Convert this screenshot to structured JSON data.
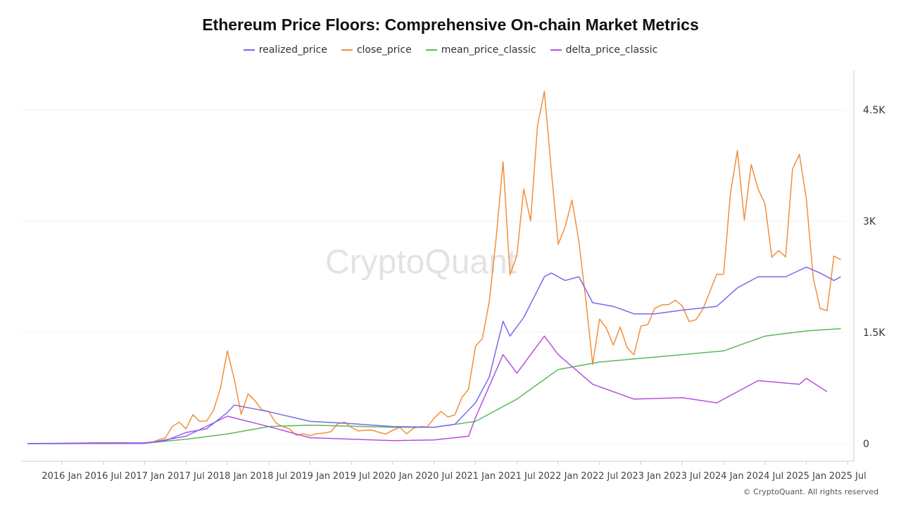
{
  "title": "Ethereum Price Floors: Comprehensive On-chain Market Metrics",
  "watermark": "CryptoQuant",
  "copyright": "© CryptoQuant. All rights reserved",
  "chart_data": {
    "type": "line",
    "title": "Ethereum Price Floors: Comprehensive On-chain Market Metrics",
    "xlabel": "",
    "ylabel": "",
    "legend_position": "top",
    "grid": "horizontal",
    "ylim": [
      -250,
      5050
    ],
    "y_ticks": [
      {
        "value": 0,
        "label": "0"
      },
      {
        "value": 1500,
        "label": "1.5K"
      },
      {
        "value": 3000,
        "label": "3K"
      },
      {
        "value": 4500,
        "label": "4.5K"
      }
    ],
    "x_ticks": [
      "2016 Jan",
      "2016 Jul",
      "2017 Jan",
      "2017 Jul",
      "2018 Jan",
      "2018 Jul",
      "2019 Jan",
      "2019 Jul",
      "2020 Jan",
      "2020 Jul",
      "2021 Jan",
      "2021 Jul",
      "2022 Jan",
      "2022 Jul",
      "2023 Jan",
      "2023 Jul",
      "2024 Jan",
      "2024 Jul",
      "2025 Jan",
      "2025 Jul"
    ],
    "series": [
      {
        "name": "realized_price",
        "color": "#7b68ee",
        "x": [
          "2015-08",
          "2016-01",
          "2016-07",
          "2017-01",
          "2017-04",
          "2017-07",
          "2017-10",
          "2018-01",
          "2018-02",
          "2018-07",
          "2019-01",
          "2019-07",
          "2020-01",
          "2020-07",
          "2020-10",
          "2021-01",
          "2021-03",
          "2021-05",
          "2021-06",
          "2021-08",
          "2021-11",
          "2021-12",
          "2022-02",
          "2022-04",
          "2022-06",
          "2022-09",
          "2022-12",
          "2023-03",
          "2023-07",
          "2023-12",
          "2024-03",
          "2024-06",
          "2024-10",
          "2025-01",
          "2025-03",
          "2025-05",
          "2025-06"
        ],
        "values": [
          1,
          5,
          8,
          10,
          40,
          150,
          200,
          420,
          520,
          430,
          300,
          270,
          230,
          220,
          260,
          550,
          900,
          1650,
          1450,
          1700,
          2250,
          2300,
          2200,
          2250,
          1900,
          1850,
          1750,
          1750,
          1800,
          1850,
          2100,
          2250,
          2250,
          2380,
          2300,
          2200,
          2250
        ]
      },
      {
        "name": "close_price",
        "color": "#f28e3c",
        "x": [
          "2015-08",
          "2015-10",
          "2015-12",
          "2016-02",
          "2016-04",
          "2016-06",
          "2016-08",
          "2016-10",
          "2016-12",
          "2017-01",
          "2017-02",
          "2017-03",
          "2017-04",
          "2017-05",
          "2017-06",
          "2017-07",
          "2017-08",
          "2017-09",
          "2017-10",
          "2017-11",
          "2017-12",
          "2018-01",
          "2018-02",
          "2018-03",
          "2018-04",
          "2018-05",
          "2018-06",
          "2018-07",
          "2018-08",
          "2018-09",
          "2018-10",
          "2018-11",
          "2018-12",
          "2019-01",
          "2019-02",
          "2019-03",
          "2019-04",
          "2019-05",
          "2019-06",
          "2019-07",
          "2019-08",
          "2019-09",
          "2019-10",
          "2019-11",
          "2019-12",
          "2020-01",
          "2020-02",
          "2020-03",
          "2020-04",
          "2020-05",
          "2020-06",
          "2020-07",
          "2020-08",
          "2020-09",
          "2020-10",
          "2020-11",
          "2020-12",
          "2021-01",
          "2021-02",
          "2021-03",
          "2021-04",
          "2021-05",
          "2021-06",
          "2021-07",
          "2021-08",
          "2021-09",
          "2021-10",
          "2021-11",
          "2021-12",
          "2022-01",
          "2022-02",
          "2022-03",
          "2022-04",
          "2022-05",
          "2022-06",
          "2022-07",
          "2022-08",
          "2022-09",
          "2022-10",
          "2022-11",
          "2022-12",
          "2023-01",
          "2023-02",
          "2023-03",
          "2023-04",
          "2023-05",
          "2023-06",
          "2023-07",
          "2023-08",
          "2023-09",
          "2023-10",
          "2023-11",
          "2023-12",
          "2024-01",
          "2024-02",
          "2024-03",
          "2024-04",
          "2024-05",
          "2024-06",
          "2024-07",
          "2024-08",
          "2024-09",
          "2024-10",
          "2024-11",
          "2024-12",
          "2025-01",
          "2025-02",
          "2025-03",
          "2025-04",
          "2025-05",
          "2025-06"
        ],
        "values": [
          1,
          0.9,
          0.9,
          6,
          9,
          12,
          11,
          11,
          8,
          10,
          16,
          50,
          80,
          230,
          290,
          200,
          390,
          300,
          305,
          450,
          750,
          1250,
          870,
          395,
          670,
          580,
          455,
          435,
          282,
          232,
          198,
          113,
          133,
          107,
          136,
          141,
          160,
          268,
          290,
          218,
          172,
          180,
          182,
          152,
          130,
          180,
          218,
          133,
          206,
          231,
          226,
          345,
          434,
          360,
          386,
          616,
          737,
          1314,
          1417,
          1918,
          2773,
          3800,
          2275,
          2536,
          3433,
          3001,
          4288,
          4750,
          3683,
          2688,
          2920,
          3283,
          2727,
          1942,
          1067,
          1680,
          1554,
          1328,
          1572,
          1295,
          1196,
          1585,
          1605,
          1822,
          1869,
          1874,
          1934,
          1857,
          1645,
          1671,
          1815,
          2047,
          2282,
          2283,
          3385,
          3950,
          3014,
          3762,
          3433,
          3232,
          2513,
          2603,
          2518,
          3703,
          3900,
          3300,
          2237,
          1822,
          1793,
          2528,
          2480
        ]
      },
      {
        "name": "mean_price_classic",
        "color": "#5cb85c",
        "x": [
          "2015-08",
          "2017-01",
          "2017-07",
          "2018-01",
          "2018-07",
          "2019-01",
          "2020-01",
          "2020-07",
          "2021-01",
          "2021-07",
          "2022-01",
          "2022-07",
          "2023-01",
          "2023-07",
          "2024-01",
          "2024-07",
          "2025-01",
          "2025-06"
        ],
        "values": [
          0,
          5,
          60,
          130,
          230,
          250,
          220,
          220,
          300,
          600,
          1000,
          1100,
          1150,
          1200,
          1250,
          1450,
          1520,
          1550
        ]
      },
      {
        "name": "delta_price_classic",
        "color": "#b44fe0",
        "x": [
          "2015-08",
          "2017-01",
          "2017-07",
          "2018-01",
          "2018-07",
          "2019-01",
          "2020-01",
          "2020-07",
          "2020-12",
          "2021-01",
          "2021-05",
          "2021-07",
          "2021-11",
          "2022-01",
          "2022-06",
          "2022-12",
          "2023-07",
          "2023-12",
          "2024-06",
          "2024-12",
          "2025-01",
          "2025-04"
        ],
        "values": [
          0,
          3,
          100,
          370,
          230,
          80,
          40,
          50,
          100,
          350,
          1200,
          950,
          1450,
          1200,
          800,
          600,
          620,
          550,
          850,
          800,
          880,
          700
        ]
      }
    ]
  }
}
